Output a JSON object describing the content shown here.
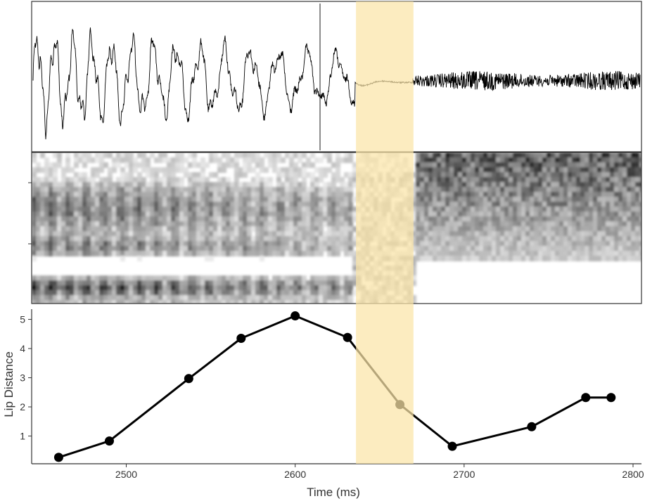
{
  "chart_data": {
    "type": "line",
    "xlabel": "Time (ms)",
    "ylabel": "Lip Distance",
    "xlim": [
      2444,
      2805
    ],
    "ylim": [
      0.05,
      5.35
    ],
    "x_ticks": [
      2500,
      2600,
      2700,
      2800
    ],
    "y_ticks": [
      1,
      2,
      3,
      4,
      5
    ],
    "highlight_x": [
      2636,
      2670
    ],
    "series": [
      {
        "x": [
          2460,
          2490,
          2537,
          2568,
          2600,
          2631,
          2662,
          2693,
          2740,
          2772,
          2787
        ],
        "y": [
          0.27,
          0.83,
          2.97,
          4.35,
          5.12,
          4.38,
          2.08,
          0.65,
          1.32,
          2.32,
          2.32
        ]
      }
    ],
    "panels": [
      "waveform",
      "spectrogram",
      "lip-distance-line"
    ],
    "grid": false,
    "legend": "none",
    "colors": {
      "line": "#000000",
      "highlight": "#fbe5a8",
      "spectrogram_dark": "#000000",
      "spectrogram_light": "#ffffff",
      "axis": "#333333"
    }
  }
}
